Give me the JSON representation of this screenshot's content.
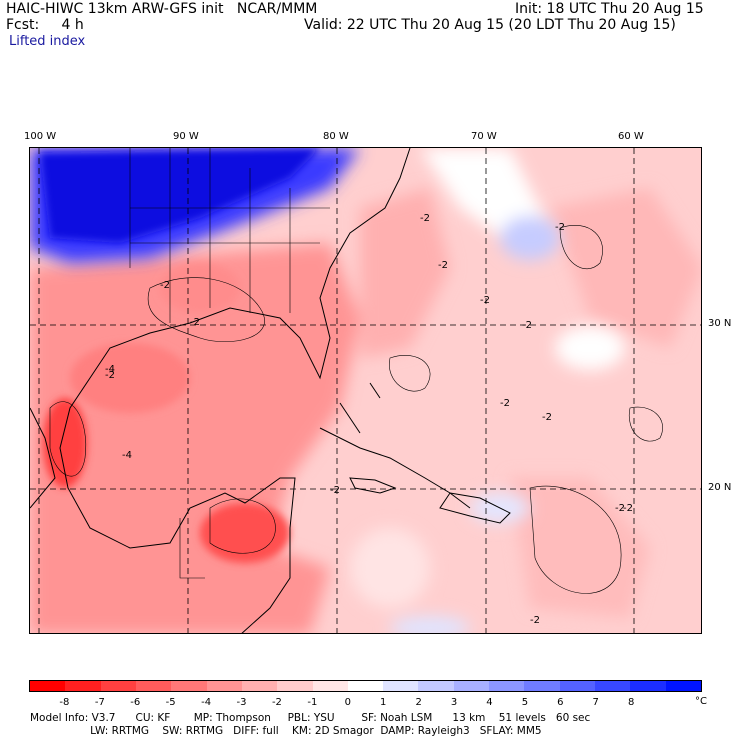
{
  "header": {
    "title": "HAIC-HIWC 13km ARW-GFS init   NCAR/MMM",
    "forecast": "Fcst:     4 h",
    "field": "Lifted index",
    "init": "Init: 18 UTC Thu 20 Aug 15",
    "valid": "Valid: 22 UTC Thu 20 Aug 15 (20 LDT Thu 20 Aug 15)"
  },
  "map": {
    "lon_labels": [
      "100 W",
      "90 W",
      "80 W",
      "70 W",
      "60 W"
    ],
    "lat_labels": [
      "30 N",
      "20 N"
    ],
    "contour_labels": [
      "-2",
      "-2",
      "-2",
      "-2",
      "-2",
      "-2",
      "-2",
      "-2",
      "-2",
      "-2",
      "-2",
      "-2",
      "-4",
      "-4",
      "-2",
      "-2"
    ],
    "colors": {
      "strong_positive": "#1010e0",
      "neutral": "#ffffff",
      "weak_negative": "#ffd8d8",
      "moderate_negative": "#ff9a9a",
      "strong_negative": "#ff3030"
    }
  },
  "colorbar": {
    "ticks": [
      "-8",
      "-7",
      "-6",
      "-5",
      "-4",
      "-3",
      "-2",
      "-1",
      "0",
      "1",
      "2",
      "3",
      "4",
      "5",
      "6",
      "7",
      "8"
    ],
    "unit": "°C",
    "colors": [
      "#ff0000",
      "#ff2020",
      "#ff4040",
      "#ff5c5c",
      "#ff7878",
      "#ff9494",
      "#ffb0b0",
      "#ffcccc",
      "#ffe6e6",
      "#ffffff",
      "#e0e4ff",
      "#c4caff",
      "#a8b0ff",
      "#8c96ff",
      "#707cff",
      "#5462ff",
      "#3848ff",
      "#1c2eff",
      "#0014ff"
    ]
  },
  "footer": {
    "line1": "Model Info: V3.7      CU: KF       MP: Thompson     PBL: YSU        SF: Noah LSM      13 km    51 levels   60 sec",
    "line2": "                  LW: RRTMG    SW: RRTMG   DIFF: full    KM: 2D Smagor  DAMP: Rayleigh3   SFLAY: MM5"
  }
}
